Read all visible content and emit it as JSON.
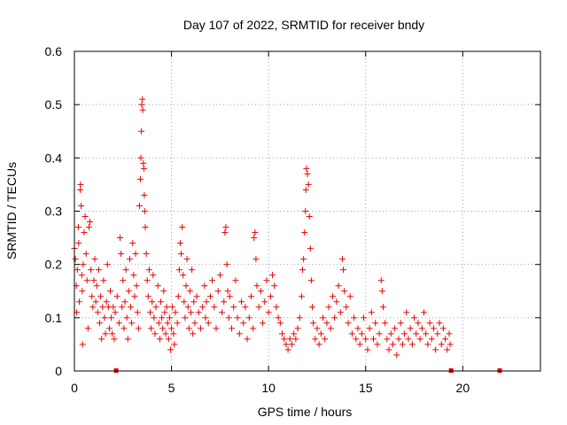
{
  "chart_data": {
    "type": "scatter",
    "title": "Day 107 of 2022, SRMTID for receiver bndy",
    "xlabel": "GPS time / hours",
    "ylabel": "SRMTID / TECUs",
    "xlim": [
      0,
      24
    ],
    "ylim": [
      0,
      0.6
    ],
    "x_ticks": [
      0,
      5,
      10,
      15,
      20
    ],
    "y_ticks": [
      0,
      0.1,
      0.2,
      0.3,
      0.4,
      0.5,
      0.6
    ],
    "x_tick_labels": [
      "0",
      "5",
      "10",
      "15",
      "20"
    ],
    "y_tick_labels": [
      "0",
      "0.1",
      "0.2",
      "0.3",
      "0.4",
      "0.5",
      "0.6"
    ],
    "grid": true,
    "marker": "plus",
    "color": "#ee0000",
    "series": [
      {
        "name": "SRMTID",
        "points": [
          [
            0.0,
            0.23
          ],
          [
            0.05,
            0.21
          ],
          [
            0.1,
            0.16
          ],
          [
            0.12,
            0.11
          ],
          [
            0.15,
            0.19
          ],
          [
            0.2,
            0.27
          ],
          [
            0.22,
            0.24
          ],
          [
            0.25,
            0.13
          ],
          [
            0.3,
            0.34
          ],
          [
            0.32,
            0.35
          ],
          [
            0.35,
            0.31
          ],
          [
            0.38,
            0.18
          ],
          [
            0.4,
            0.15
          ],
          [
            0.42,
            0.05
          ],
          [
            0.45,
            0.2
          ],
          [
            0.5,
            0.26
          ],
          [
            0.55,
            0.29
          ],
          [
            0.6,
            0.22
          ],
          [
            0.65,
            0.17
          ],
          [
            0.7,
            0.08
          ],
          [
            0.75,
            0.27
          ],
          [
            0.8,
            0.28
          ],
          [
            0.85,
            0.19
          ],
          [
            0.9,
            0.14
          ],
          [
            0.95,
            0.12
          ],
          [
            1.0,
            0.17
          ],
          [
            1.05,
            0.21
          ],
          [
            1.1,
            0.13
          ],
          [
            1.15,
            0.16
          ],
          [
            1.2,
            0.11
          ],
          [
            1.25,
            0.19
          ],
          [
            1.3,
            0.09
          ],
          [
            1.35,
            0.14
          ],
          [
            1.4,
            0.06
          ],
          [
            1.45,
            0.12
          ],
          [
            1.5,
            0.17
          ],
          [
            1.55,
            0.1
          ],
          [
            1.6,
            0.07
          ],
          [
            1.65,
            0.13
          ],
          [
            1.7,
            0.2
          ],
          [
            1.75,
            0.12
          ],
          [
            1.8,
            0.08
          ],
          [
            1.85,
            0.15
          ],
          [
            1.9,
            0.1
          ],
          [
            1.95,
            0.07
          ],
          [
            2.0,
            0.12
          ],
          [
            2.05,
            0.06
          ],
          [
            2.1,
            0.11
          ],
          [
            2.2,
            0.14
          ],
          [
            2.3,
            0.09
          ],
          [
            2.35,
            0.25
          ],
          [
            2.4,
            0.22
          ],
          [
            2.45,
            0.12
          ],
          [
            2.5,
            0.17
          ],
          [
            2.55,
            0.08
          ],
          [
            2.6,
            0.13
          ],
          [
            2.65,
            0.19
          ],
          [
            2.7,
            0.1
          ],
          [
            2.75,
            0.06
          ],
          [
            2.8,
            0.15
          ],
          [
            2.85,
            0.21
          ],
          [
            2.9,
            0.12
          ],
          [
            2.95,
            0.09
          ],
          [
            3.0,
            0.24
          ],
          [
            3.05,
            0.18
          ],
          [
            3.1,
            0.14
          ],
          [
            3.15,
            0.22
          ],
          [
            3.2,
            0.16
          ],
          [
            3.25,
            0.11
          ],
          [
            3.3,
            0.08
          ],
          [
            3.35,
            0.31
          ],
          [
            3.4,
            0.36
          ],
          [
            3.42,
            0.4
          ],
          [
            3.45,
            0.45
          ],
          [
            3.47,
            0.5
          ],
          [
            3.5,
            0.51
          ],
          [
            3.52,
            0.49
          ],
          [
            3.55,
            0.39
          ],
          [
            3.58,
            0.38
          ],
          [
            3.6,
            0.33
          ],
          [
            3.62,
            0.3
          ],
          [
            3.65,
            0.27
          ],
          [
            3.7,
            0.22
          ],
          [
            3.75,
            0.17
          ],
          [
            3.8,
            0.14
          ],
          [
            3.85,
            0.19
          ],
          [
            3.9,
            0.11
          ],
          [
            3.95,
            0.08
          ],
          [
            4.0,
            0.13
          ],
          [
            4.05,
            0.18
          ],
          [
            4.1,
            0.1
          ],
          [
            4.15,
            0.07
          ],
          [
            4.2,
            0.12
          ],
          [
            4.3,
            0.16
          ],
          [
            4.35,
            0.09
          ],
          [
            4.4,
            0.06
          ],
          [
            4.45,
            0.13
          ],
          [
            4.5,
            0.1
          ],
          [
            4.55,
            0.08
          ],
          [
            4.6,
            0.15
          ],
          [
            4.65,
            0.11
          ],
          [
            4.7,
            0.07
          ],
          [
            4.75,
            0.12
          ],
          [
            4.8,
            0.09
          ],
          [
            4.85,
            0.06
          ],
          [
            4.9,
            0.1
          ],
          [
            4.95,
            0.04
          ],
          [
            5.0,
            0.08
          ],
          [
            5.05,
            0.12
          ],
          [
            5.1,
            0.07
          ],
          [
            5.15,
            0.05
          ],
          [
            5.2,
            0.11
          ],
          [
            5.3,
            0.09
          ],
          [
            5.35,
            0.14
          ],
          [
            5.4,
            0.19
          ],
          [
            5.45,
            0.24
          ],
          [
            5.5,
            0.22
          ],
          [
            5.55,
            0.27
          ],
          [
            5.6,
            0.18
          ],
          [
            5.65,
            0.13
          ],
          [
            5.7,
            0.1
          ],
          [
            5.75,
            0.16
          ],
          [
            5.8,
            0.21
          ],
          [
            5.85,
            0.12
          ],
          [
            5.9,
            0.08
          ],
          [
            5.95,
            0.15
          ],
          [
            6.0,
            0.11
          ],
          [
            6.05,
            0.19
          ],
          [
            6.1,
            0.07
          ],
          [
            6.15,
            0.13
          ],
          [
            6.2,
            0.09
          ],
          [
            6.3,
            0.14
          ],
          [
            6.4,
            0.11
          ],
          [
            6.5,
            0.08
          ],
          [
            6.6,
            0.12
          ],
          [
            6.7,
            0.16
          ],
          [
            6.75,
            0.1
          ],
          [
            6.8,
            0.13
          ],
          [
            6.9,
            0.09
          ],
          [
            7.0,
            0.14
          ],
          [
            7.1,
            0.17
          ],
          [
            7.2,
            0.12
          ],
          [
            7.3,
            0.08
          ],
          [
            7.4,
            0.15
          ],
          [
            7.5,
            0.18
          ],
          [
            7.6,
            0.11
          ],
          [
            7.7,
            0.13
          ],
          [
            7.75,
            0.26
          ],
          [
            7.8,
            0.27
          ],
          [
            7.85,
            0.2
          ],
          [
            7.9,
            0.15
          ],
          [
            7.95,
            0.1
          ],
          [
            8.0,
            0.14
          ],
          [
            8.1,
            0.08
          ],
          [
            8.2,
            0.12
          ],
          [
            8.3,
            0.17
          ],
          [
            8.4,
            0.1
          ],
          [
            8.5,
            0.07
          ],
          [
            8.6,
            0.13
          ],
          [
            8.7,
            0.09
          ],
          [
            8.8,
            0.12
          ],
          [
            8.9,
            0.06
          ],
          [
            9.0,
            0.1
          ],
          [
            9.1,
            0.14
          ],
          [
            9.2,
            0.08
          ],
          [
            9.25,
            0.25
          ],
          [
            9.3,
            0.26
          ],
          [
            9.35,
            0.21
          ],
          [
            9.4,
            0.16
          ],
          [
            9.5,
            0.12
          ],
          [
            9.6,
            0.15
          ],
          [
            9.7,
            0.09
          ],
          [
            9.8,
            0.13
          ],
          [
            9.9,
            0.17
          ],
          [
            10.0,
            0.11
          ],
          [
            10.1,
            0.14
          ],
          [
            10.2,
            0.18
          ],
          [
            10.3,
            0.16
          ],
          [
            10.4,
            0.12
          ],
          [
            10.5,
            0.1
          ],
          [
            10.6,
            0.09
          ],
          [
            10.7,
            0.07
          ],
          [
            10.8,
            0.06
          ],
          [
            10.9,
            0.05
          ],
          [
            11.0,
            0.04
          ],
          [
            11.1,
            0.06
          ],
          [
            11.2,
            0.05
          ],
          [
            11.3,
            0.07
          ],
          [
            11.4,
            0.06
          ],
          [
            11.5,
            0.08
          ],
          [
            11.6,
            0.1
          ],
          [
            11.7,
            0.14
          ],
          [
            11.75,
            0.19
          ],
          [
            11.8,
            0.21
          ],
          [
            11.85,
            0.26
          ],
          [
            11.9,
            0.3
          ],
          [
            11.92,
            0.34
          ],
          [
            11.95,
            0.38
          ],
          [
            12.0,
            0.37
          ],
          [
            12.05,
            0.35
          ],
          [
            12.1,
            0.29
          ],
          [
            12.15,
            0.23
          ],
          [
            12.2,
            0.17
          ],
          [
            12.25,
            0.12
          ],
          [
            12.3,
            0.09
          ],
          [
            12.4,
            0.06
          ],
          [
            12.5,
            0.08
          ],
          [
            12.6,
            0.05
          ],
          [
            12.7,
            0.07
          ],
          [
            12.8,
            0.1
          ],
          [
            12.9,
            0.06
          ],
          [
            13.0,
            0.09
          ],
          [
            13.1,
            0.12
          ],
          [
            13.2,
            0.08
          ],
          [
            13.3,
            0.14
          ],
          [
            13.4,
            0.1
          ],
          [
            13.5,
            0.13
          ],
          [
            13.6,
            0.16
          ],
          [
            13.7,
            0.11
          ],
          [
            13.8,
            0.21
          ],
          [
            13.85,
            0.19
          ],
          [
            13.9,
            0.15
          ],
          [
            14.0,
            0.12
          ],
          [
            14.1,
            0.09
          ],
          [
            14.2,
            0.14
          ],
          [
            14.3,
            0.07
          ],
          [
            14.4,
            0.1
          ],
          [
            14.5,
            0.06
          ],
          [
            14.6,
            0.08
          ],
          [
            14.7,
            0.05
          ],
          [
            14.8,
            0.07
          ],
          [
            14.9,
            0.1
          ],
          [
            15.0,
            0.06
          ],
          [
            15.1,
            0.04
          ],
          [
            15.2,
            0.08
          ],
          [
            15.3,
            0.11
          ],
          [
            15.4,
            0.06
          ],
          [
            15.5,
            0.09
          ],
          [
            15.6,
            0.05
          ],
          [
            15.7,
            0.07
          ],
          [
            15.8,
            0.17
          ],
          [
            15.85,
            0.15
          ],
          [
            15.9,
            0.12
          ],
          [
            16.0,
            0.09
          ],
          [
            16.1,
            0.06
          ],
          [
            16.2,
            0.04
          ],
          [
            16.3,
            0.07
          ],
          [
            16.4,
            0.05
          ],
          [
            16.5,
            0.08
          ],
          [
            16.6,
            0.03
          ],
          [
            16.7,
            0.06
          ],
          [
            16.8,
            0.09
          ],
          [
            16.9,
            0.05
          ],
          [
            17.0,
            0.07
          ],
          [
            17.1,
            0.11
          ],
          [
            17.2,
            0.06
          ],
          [
            17.3,
            0.08
          ],
          [
            17.4,
            0.05
          ],
          [
            17.5,
            0.1
          ],
          [
            17.6,
            0.07
          ],
          [
            17.7,
            0.09
          ],
          [
            17.8,
            0.06
          ],
          [
            17.9,
            0.08
          ],
          [
            18.0,
            0.11
          ],
          [
            18.1,
            0.07
          ],
          [
            18.2,
            0.05
          ],
          [
            18.3,
            0.09
          ],
          [
            18.4,
            0.06
          ],
          [
            18.5,
            0.08
          ],
          [
            18.6,
            0.04
          ],
          [
            18.7,
            0.07
          ],
          [
            18.8,
            0.09
          ],
          [
            18.9,
            0.05
          ],
          [
            19.0,
            0.08
          ],
          [
            19.1,
            0.06
          ],
          [
            19.2,
            0.04
          ],
          [
            19.3,
            0.07
          ],
          [
            19.35,
            0.05
          ]
        ]
      }
    ],
    "zero_markers": [
      2.15,
      19.4,
      21.9
    ]
  }
}
